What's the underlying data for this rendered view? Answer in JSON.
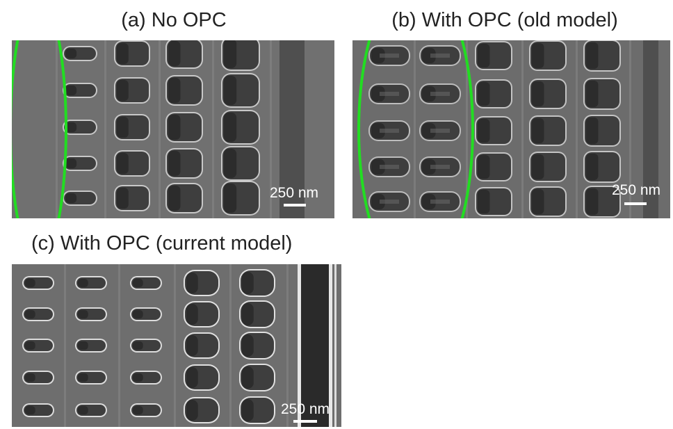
{
  "panels": [
    {
      "title": "(a) No OPC",
      "scale_label": "250 nm"
    },
    {
      "title": "(b) With OPC (old model)",
      "scale_label": "250 nm"
    },
    {
      "title": "(c) With OPC (current model)",
      "scale_label": "250 nm"
    }
  ]
}
